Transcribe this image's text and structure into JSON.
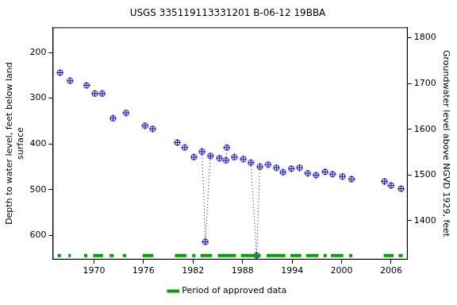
{
  "chart_data": {
    "type": "scatter",
    "title": "USGS 335119113331201 B-06-12 19BBA",
    "y_label": [
      "Depth to water level, feet below land",
      "surface"
    ],
    "y2_label": "Groundwater level above NGVD 1929, feet",
    "xlim": [
      1965,
      2008
    ],
    "xticks": [
      1970,
      1976,
      1982,
      1988,
      1994,
      2000,
      2006
    ],
    "ylim": [
      653,
      145
    ],
    "yticks": [
      200,
      300,
      400,
      500,
      600
    ],
    "y2lim": [
      1315,
      1823
    ],
    "y2ticks": [
      1400,
      1500,
      1600,
      1700,
      1800
    ],
    "grid": false,
    "legend": "bottom",
    "series": [
      {
        "color": "#0000cc",
        "marker": "circle-cross",
        "line_style": "none",
        "x": [
          1965.9,
          1967.1,
          1969.1,
          1970.1,
          1971.0,
          1972.3,
          1973.9,
          1976.2,
          1977.1,
          1980.1,
          1981.0,
          1982.1,
          1983.1,
          1983.5,
          1984.1,
          1985.2,
          1986.0,
          1986.1,
          1987.0,
          1988.1,
          1989.0,
          1989.7,
          1990.1,
          1991.1,
          1992.1,
          1992.9,
          1993.9,
          1994.9,
          1995.9,
          1996.9,
          1998.0,
          1998.9,
          2000.1,
          2001.2,
          2005.2,
          2006.0,
          2007.2
        ],
        "values": [
          244,
          262,
          272,
          290,
          290,
          344,
          332,
          360,
          367,
          397,
          408,
          429,
          417,
          614,
          426,
          431,
          436,
          408,
          429,
          433,
          441,
          644,
          450,
          445,
          452,
          462,
          454,
          452,
          464,
          468,
          461,
          466,
          471,
          477,
          482,
          491,
          498
        ]
      },
      {
        "color": "#0000cc",
        "marker": "none",
        "line_style": "dotted",
        "x": [
          1983.1,
          1983.5,
          1984.1
        ],
        "values": [
          417,
          614,
          426
        ]
      },
      {
        "color": "#0000cc",
        "marker": "none",
        "line_style": "dotted",
        "x": [
          1986.0,
          1986.1
        ],
        "values": [
          436,
          408
        ]
      },
      {
        "color": "#0000cc",
        "marker": "none",
        "line_style": "dotted",
        "x": [
          1989.0,
          1989.7,
          1990.1
        ],
        "values": [
          441,
          644,
          450
        ]
      }
    ],
    "approved_periods": {
      "name": "Period of approved data",
      "color": "#00a000",
      "ranges": [
        [
          1965.6,
          1966.0
        ],
        [
          1966.9,
          1967.2
        ],
        [
          1968.8,
          1969.2
        ],
        [
          1969.9,
          1971.1
        ],
        [
          1971.9,
          1972.4
        ],
        [
          1973.5,
          1973.9
        ],
        [
          1975.9,
          1977.2
        ],
        [
          1979.8,
          1981.2
        ],
        [
          1981.9,
          1982.3
        ],
        [
          1982.9,
          1984.3
        ],
        [
          1985.0,
          1987.2
        ],
        [
          1987.8,
          1990.2
        ],
        [
          1990.9,
          1993.2
        ],
        [
          1993.8,
          1995.1
        ],
        [
          1995.7,
          1997.2
        ],
        [
          1997.8,
          1998.2
        ],
        [
          1998.7,
          2000.2
        ],
        [
          2000.9,
          2001.3
        ],
        [
          2005.1,
          2006.3
        ],
        [
          2006.9,
          2007.4
        ]
      ]
    }
  }
}
